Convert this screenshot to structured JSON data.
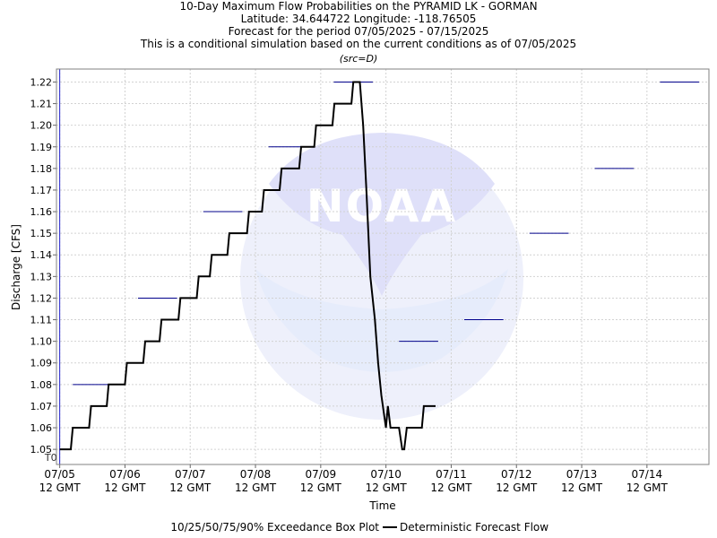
{
  "chart_data": {
    "type": "line",
    "title_lines": [
      "10-Day Maximum Flow Probabilities on the PYRAMID LK - GORMAN",
      "Latitude: 34.644722 Longitude: -118.76505",
      "Forecast for the period 07/05/2025 - 07/15/2025",
      "This is a conditional simulation based on the current conditions as of 07/05/2025"
    ],
    "subtitle": "(src=D)",
    "xlabel": "Time",
    "ylabel": "Discharge [CFS]",
    "xlim": [
      -0.05,
      9.95
    ],
    "ylim": [
      1.043,
      1.226
    ],
    "y_ticks": [
      1.05,
      1.06,
      1.07,
      1.08,
      1.09,
      1.1,
      1.11,
      1.12,
      1.13,
      1.14,
      1.15,
      1.16,
      1.17,
      1.18,
      1.19,
      1.2,
      1.21,
      1.22
    ],
    "x_ticks": [
      {
        "pos": 0,
        "line1": "07/05",
        "line2": "12 GMT"
      },
      {
        "pos": 1,
        "line1": "07/06",
        "line2": "12 GMT"
      },
      {
        "pos": 2,
        "line1": "07/07",
        "line2": "12 GMT"
      },
      {
        "pos": 3,
        "line1": "07/08",
        "line2": "12 GMT"
      },
      {
        "pos": 4,
        "line1": "07/09",
        "line2": "12 GMT"
      },
      {
        "pos": 5,
        "line1": "07/10",
        "line2": "12 GMT"
      },
      {
        "pos": 6,
        "line1": "07/11",
        "line2": "12 GMT"
      },
      {
        "pos": 7,
        "line1": "07/12",
        "line2": "12 GMT"
      },
      {
        "pos": 8,
        "line1": "07/13",
        "line2": "12 GMT"
      },
      {
        "pos": 9,
        "line1": "07/14",
        "line2": "12 GMT"
      }
    ],
    "t0_label": "T0",
    "t0_pos": 0,
    "grid": true,
    "exceedance_marks": [
      {
        "x_start": 0.2,
        "x_end": 0.8,
        "value": 1.08
      },
      {
        "x_start": 1.2,
        "x_end": 1.8,
        "value": 1.12
      },
      {
        "x_start": 2.2,
        "x_end": 2.8,
        "value": 1.16
      },
      {
        "x_start": 3.2,
        "x_end": 3.8,
        "value": 1.19
      },
      {
        "x_start": 4.2,
        "x_end": 4.8,
        "value": 1.22
      },
      {
        "x_start": 5.2,
        "x_end": 5.8,
        "value": 1.1
      },
      {
        "x_start": 6.2,
        "x_end": 6.8,
        "value": 1.11
      },
      {
        "x_start": 7.2,
        "x_end": 7.8,
        "value": 1.15
      },
      {
        "x_start": 8.2,
        "x_end": 8.8,
        "value": 1.18
      },
      {
        "x_start": 9.2,
        "x_end": 9.8,
        "value": 1.22
      }
    ],
    "series": [
      {
        "name": "Deterministic Forecast Flow",
        "points": [
          [
            0.0,
            1.05
          ],
          [
            0.17,
            1.05
          ],
          [
            0.2,
            1.06
          ],
          [
            0.45,
            1.06
          ],
          [
            0.48,
            1.07
          ],
          [
            0.72,
            1.07
          ],
          [
            0.75,
            1.08
          ],
          [
            1.0,
            1.08
          ],
          [
            1.03,
            1.09
          ],
          [
            1.28,
            1.09
          ],
          [
            1.31,
            1.1
          ],
          [
            1.53,
            1.1
          ],
          [
            1.56,
            1.11
          ],
          [
            1.82,
            1.11
          ],
          [
            1.85,
            1.12
          ],
          [
            2.1,
            1.12
          ],
          [
            2.13,
            1.13
          ],
          [
            2.3,
            1.13
          ],
          [
            2.33,
            1.14
          ],
          [
            2.57,
            1.14
          ],
          [
            2.6,
            1.15
          ],
          [
            2.87,
            1.15
          ],
          [
            2.9,
            1.16
          ],
          [
            3.1,
            1.16
          ],
          [
            3.13,
            1.17
          ],
          [
            3.37,
            1.17
          ],
          [
            3.4,
            1.18
          ],
          [
            3.67,
            1.18
          ],
          [
            3.7,
            1.19
          ],
          [
            3.9,
            1.19
          ],
          [
            3.93,
            1.2
          ],
          [
            4.18,
            1.2
          ],
          [
            4.21,
            1.21
          ],
          [
            4.47,
            1.21
          ],
          [
            4.5,
            1.22
          ],
          [
            4.6,
            1.22
          ],
          [
            4.65,
            1.2
          ],
          [
            4.7,
            1.17
          ],
          [
            4.76,
            1.13
          ],
          [
            4.83,
            1.11
          ],
          [
            4.88,
            1.09
          ],
          [
            4.93,
            1.075
          ],
          [
            5.0,
            1.06
          ],
          [
            5.03,
            1.07
          ],
          [
            5.07,
            1.06
          ],
          [
            5.2,
            1.06
          ],
          [
            5.25,
            1.05
          ],
          [
            5.28,
            1.05
          ],
          [
            5.32,
            1.06
          ],
          [
            5.55,
            1.06
          ],
          [
            5.58,
            1.07
          ],
          [
            5.76,
            1.07
          ]
        ]
      }
    ],
    "legend": {
      "box_plot_label": "10/25/50/75/90% Exceedance Box Plot",
      "line_label": "Deterministic Forecast Flow",
      "placement": "bottom"
    },
    "watermark_text": "NOAA"
  }
}
